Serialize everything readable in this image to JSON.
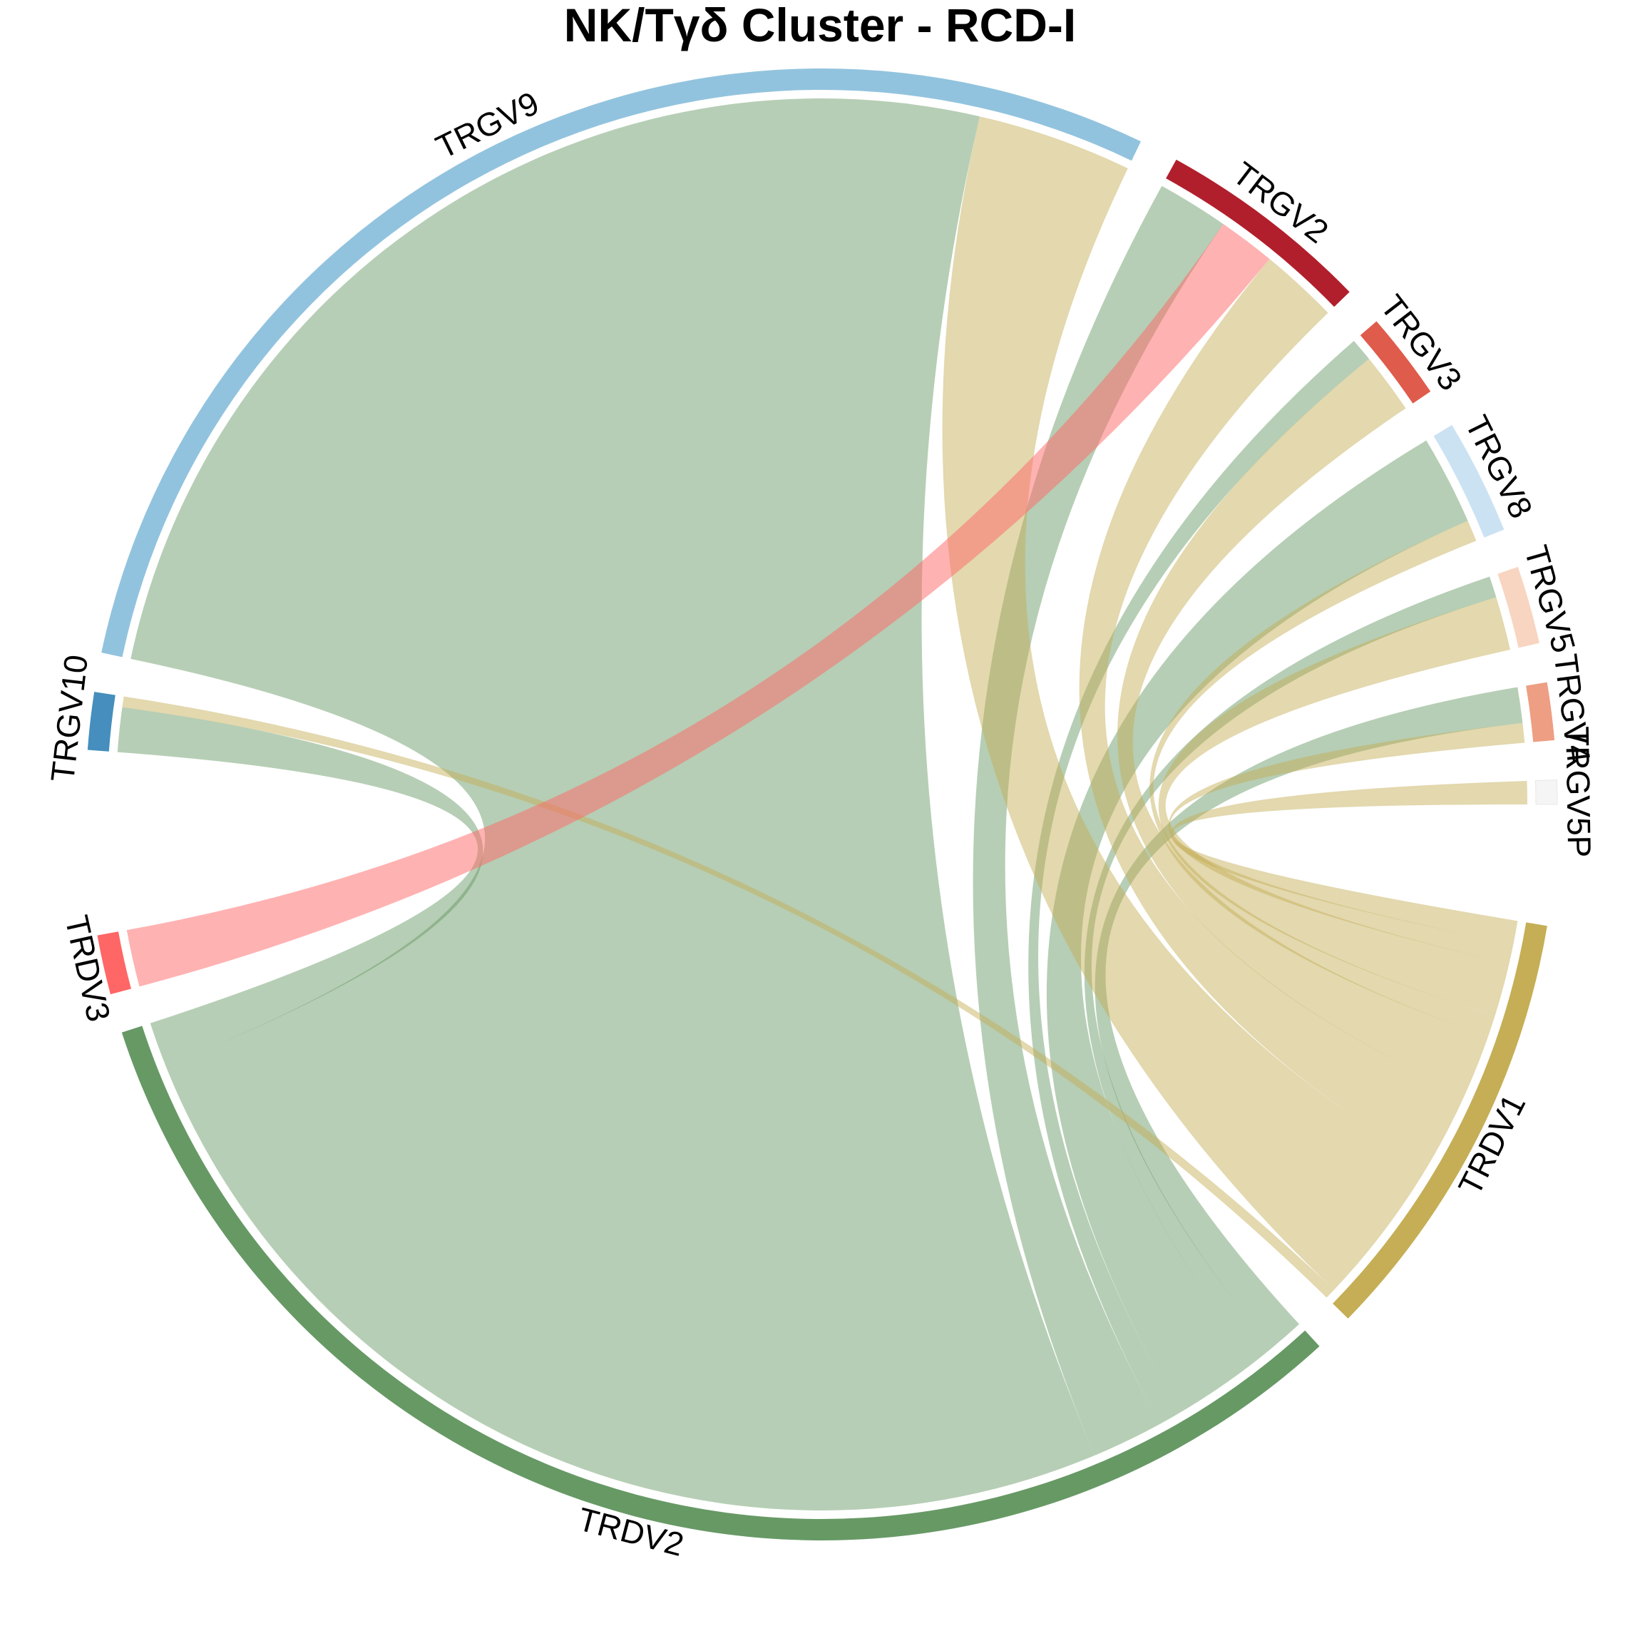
{
  "chart_data": {
    "type": "chord",
    "title": "NK/Tγδ Cluster - RCD-I",
    "sectors": [
      {
        "name": "TRDV1",
        "color": "#C5AE55"
      },
      {
        "name": "TRDV2",
        "color": "#679965"
      },
      {
        "name": "TRDV3",
        "color": "#FF6666"
      },
      {
        "name": "TRGV10",
        "color": "#458EBD"
      },
      {
        "name": "TRGV9",
        "color": "#92C3DE"
      },
      {
        "name": "TRGV2",
        "color": "#B11F2C"
      },
      {
        "name": "TRGV3",
        "color": "#DF5B4B"
      },
      {
        "name": "TRGV8",
        "color": "#CBE2F3"
      },
      {
        "name": "TRGV5",
        "color": "#F8D5C0"
      },
      {
        "name": "TRGV4",
        "color": "#EE9E83"
      },
      {
        "name": "TRGV5P",
        "color": "#F5F5F5"
      }
    ],
    "links": [
      {
        "from": "TRDV2",
        "to": "TRGV10",
        "value": 2.5
      },
      {
        "from": "TRDV2",
        "to": "TRGV9",
        "value": 62
      },
      {
        "from": "TRDV2",
        "to": "TRGV2",
        "value": 4
      },
      {
        "from": "TRDV2",
        "to": "TRGV3",
        "value": 1.3
      },
      {
        "from": "TRDV2",
        "to": "TRGV8",
        "value": 5
      },
      {
        "from": "TRDV2",
        "to": "TRGV5",
        "value": 1.2
      },
      {
        "from": "TRDV2",
        "to": "TRGV4",
        "value": 2
      },
      {
        "from": "TRDV1",
        "to": "TRGV10",
        "value": 0.6
      },
      {
        "from": "TRDV1",
        "to": "TRGV9",
        "value": 8.7
      },
      {
        "from": "TRDV1",
        "to": "TRGV2",
        "value": 4.4
      },
      {
        "from": "TRDV1",
        "to": "TRGV3",
        "value": 3.4
      },
      {
        "from": "TRDV1",
        "to": "TRGV8",
        "value": 1.2
      },
      {
        "from": "TRDV1",
        "to": "TRGV5",
        "value": 3
      },
      {
        "from": "TRDV1",
        "to": "TRGV4",
        "value": 1.1
      },
      {
        "from": "TRDV1",
        "to": "TRGV5P",
        "value": 1.3
      },
      {
        "from": "TRDV3",
        "to": "TRGV2",
        "value": 3.2
      }
    ]
  }
}
